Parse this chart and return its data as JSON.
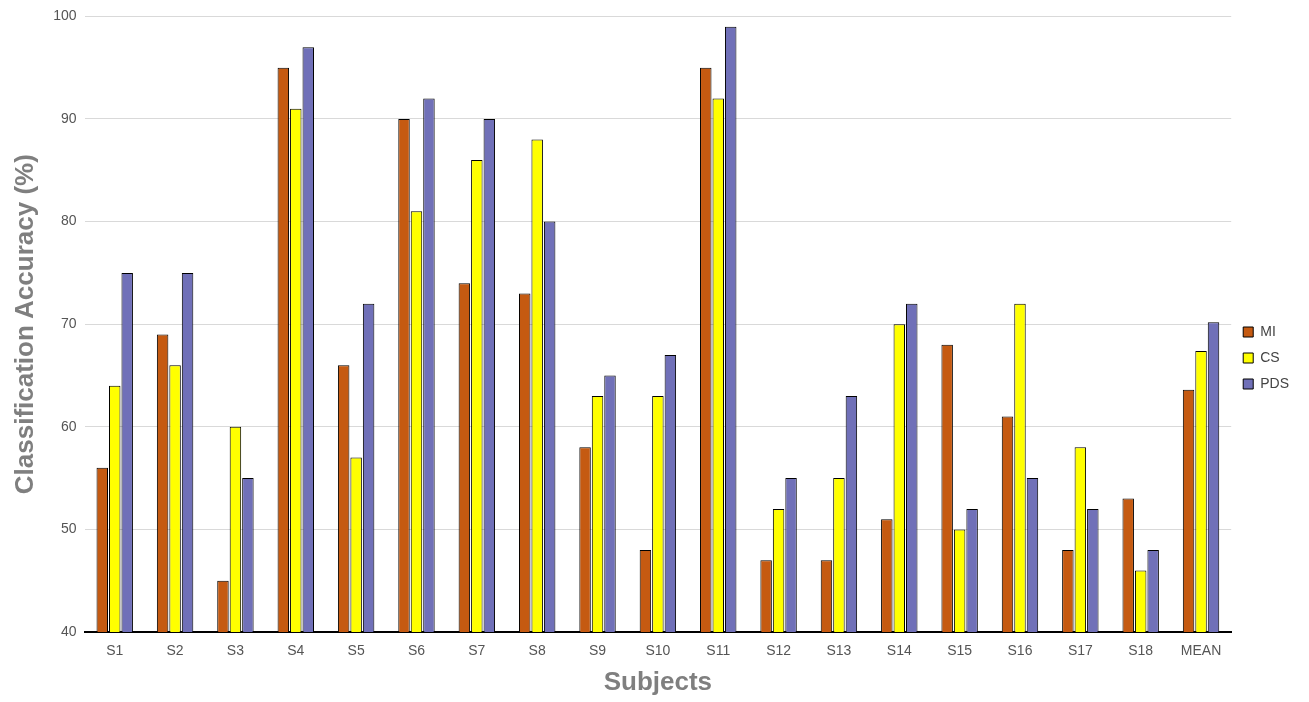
{
  "chart_data": {
    "type": "bar",
    "xlabel": "Subjects",
    "ylabel": "Classification Accuracy (%)",
    "categories": [
      "S1",
      "S2",
      "S3",
      "S4",
      "S5",
      "S6",
      "S7",
      "S8",
      "S9",
      "S10",
      "S11",
      "S12",
      "S13",
      "S14",
      "S15",
      "S16",
      "S17",
      "S18",
      "MEAN"
    ],
    "series": [
      {
        "name": "MI",
        "color": "#c55a11",
        "values": [
          56,
          69,
          45,
          95,
          66,
          90,
          74,
          73,
          58,
          48,
          95,
          47,
          47,
          51,
          68,
          61,
          48,
          53,
          63.6
        ]
      },
      {
        "name": "CS",
        "color": "#ffff00",
        "values": [
          64,
          66,
          60,
          91,
          57,
          81,
          86,
          88,
          63,
          63,
          92,
          52,
          55,
          70,
          50,
          72,
          58,
          46,
          67.4
        ]
      },
      {
        "name": "PDS",
        "color": "#7070b8",
        "values": [
          75,
          75,
          55,
          97,
          72,
          92,
          90,
          80,
          65,
          67,
          99,
          55,
          63,
          72,
          52,
          55,
          52,
          48,
          70.2
        ]
      }
    ],
    "ylim": [
      40,
      100
    ],
    "yticks": [
      40,
      50,
      60,
      70,
      80,
      90,
      100
    ],
    "grid": "y",
    "legend": "right"
  }
}
